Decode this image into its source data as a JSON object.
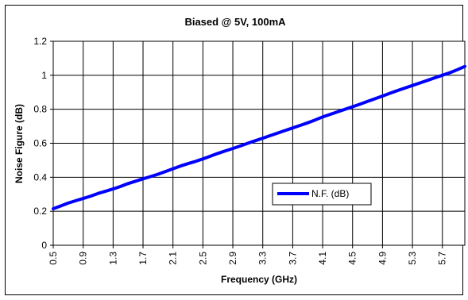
{
  "chart_data": {
    "type": "line",
    "title": "Biased @ 5V, 100mA",
    "xlabel": "Frequency (GHz)",
    "ylabel": "Noise Figure (dB)",
    "xlim": [
      0.5,
      6.0
    ],
    "ylim": [
      0,
      1.2
    ],
    "x_tick_labels": [
      "0.5",
      "0.9",
      "1.3",
      "1.7",
      "2.1",
      "2.5",
      "2.9",
      "3.3",
      "3.7",
      "4.1",
      "4.5",
      "4.9",
      "5.3",
      "5.7"
    ],
    "y_tick_labels": [
      "0",
      "0.2",
      "0.4",
      "0.6",
      "0.8",
      "1",
      "1.2"
    ],
    "y_ticks": [
      0,
      0.2,
      0.4,
      0.6,
      0.8,
      1.0,
      1.2
    ],
    "grid": true,
    "legend_position": "lower-right",
    "series": [
      {
        "name": "N.F. (dB)",
        "color": "#0000FF",
        "x": [
          0.5,
          0.6,
          0.7,
          0.8,
          0.9,
          1.0,
          1.1,
          1.2,
          1.3,
          1.4,
          1.5,
          1.6,
          1.7,
          1.8,
          1.9,
          2.0,
          2.1,
          2.2,
          2.3,
          2.4,
          2.5,
          2.6,
          2.7,
          2.8,
          2.9,
          3.0,
          3.1,
          3.2,
          3.3,
          3.4,
          3.5,
          3.6,
          3.7,
          3.8,
          3.9,
          4.0,
          4.1,
          4.2,
          4.3,
          4.4,
          4.5,
          4.6,
          4.7,
          4.8,
          4.9,
          5.0,
          5.1,
          5.2,
          5.3,
          5.4,
          5.5,
          5.6,
          5.7,
          5.8,
          5.9,
          6.0
        ],
        "y": [
          0.215,
          0.231,
          0.248,
          0.262,
          0.275,
          0.289,
          0.305,
          0.318,
          0.331,
          0.346,
          0.363,
          0.377,
          0.391,
          0.404,
          0.418,
          0.434,
          0.45,
          0.466,
          0.48,
          0.493,
          0.508,
          0.524,
          0.54,
          0.555,
          0.569,
          0.584,
          0.6,
          0.615,
          0.63,
          0.645,
          0.66,
          0.675,
          0.69,
          0.705,
          0.72,
          0.737,
          0.755,
          0.77,
          0.785,
          0.8,
          0.815,
          0.83,
          0.846,
          0.862,
          0.878,
          0.894,
          0.91,
          0.925,
          0.94,
          0.955,
          0.97,
          0.985,
          1.0,
          1.015,
          1.033,
          1.052
        ]
      }
    ]
  }
}
